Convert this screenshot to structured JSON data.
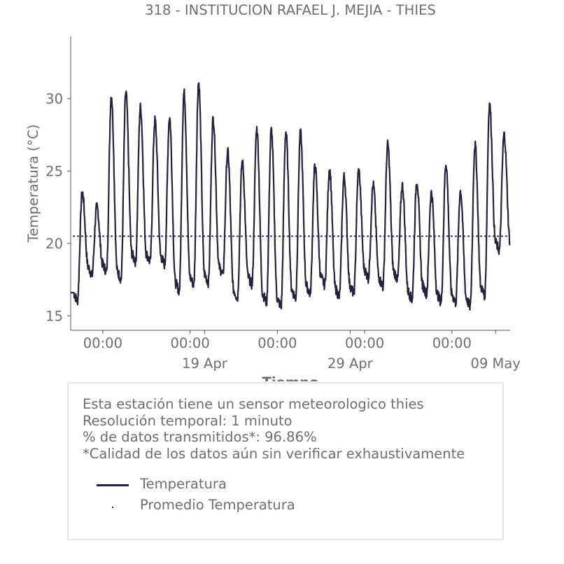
{
  "chart_data": {
    "type": "line",
    "title": "318 - INSTITUCION RAFAEL J. MEJIA - THIES",
    "xlabel": "Tiempo",
    "ylabel": "Temperatura (°C)",
    "ylim": [
      14,
      34.3
    ],
    "xlim": [
      "2025-04-09T19:00",
      "2025-05-10T00:00"
    ],
    "yticks": [
      15,
      20,
      25,
      30
    ],
    "xticks_time": [
      {
        "date": "2025-04-12T00:00",
        "label": "00:00"
      },
      {
        "date": "2025-04-18T00:00",
        "label": "00:00"
      },
      {
        "date": "2025-04-24T00:00",
        "label": "00:00"
      },
      {
        "date": "2025-04-30T00:00",
        "label": "00:00"
      },
      {
        "date": "2025-05-06T00:00",
        "label": "00:00"
      }
    ],
    "xticks_date": [
      {
        "date": "2025-04-19T00:00",
        "label": "19 Apr"
      },
      {
        "date": "2025-04-29T00:00",
        "label": "29 Apr"
      },
      {
        "date": "2025-05-09T00:00",
        "label": "09 May"
      }
    ],
    "grid": false,
    "series": [
      {
        "name": "Temperatura",
        "color": "#22223f",
        "style": "solid",
        "daily": [
          {
            "date": "2025-04-10",
            "min": 16.0,
            "max": 23.5
          },
          {
            "date": "2025-04-11",
            "min": 17.8,
            "max": 22.5
          },
          {
            "date": "2025-04-12",
            "min": 18.0,
            "max": 30.2
          },
          {
            "date": "2025-04-13",
            "min": 17.5,
            "max": 30.4
          },
          {
            "date": "2025-04-14",
            "min": 18.7,
            "max": 29.4
          },
          {
            "date": "2025-04-15",
            "min": 18.7,
            "max": 28.5
          },
          {
            "date": "2025-04-16",
            "min": 18.5,
            "max": 28.7
          },
          {
            "date": "2025-04-17",
            "min": 16.7,
            "max": 30.4
          },
          {
            "date": "2025-04-18",
            "min": 17.1,
            "max": 31.1
          },
          {
            "date": "2025-04-19",
            "min": 17.3,
            "max": 28.6
          },
          {
            "date": "2025-04-20",
            "min": 17.8,
            "max": 26.3
          },
          {
            "date": "2025-04-21",
            "min": 16.2,
            "max": 25.6
          },
          {
            "date": "2025-04-22",
            "min": 17.1,
            "max": 27.9
          },
          {
            "date": "2025-04-23",
            "min": 15.9,
            "max": 27.8
          },
          {
            "date": "2025-04-24",
            "min": 15.6,
            "max": 27.7
          },
          {
            "date": "2025-04-25",
            "min": 16.2,
            "max": 27.6
          },
          {
            "date": "2025-04-26",
            "min": 16.5,
            "max": 25.3
          },
          {
            "date": "2025-04-27",
            "min": 17.1,
            "max": 25.1
          },
          {
            "date": "2025-04-28",
            "min": 16.3,
            "max": 24.6
          },
          {
            "date": "2025-04-29",
            "min": 16.5,
            "max": 25.0
          },
          {
            "date": "2025-04-30",
            "min": 17.6,
            "max": 24.0
          },
          {
            "date": "2025-05-01",
            "min": 17.0,
            "max": 26.8
          },
          {
            "date": "2025-05-02",
            "min": 17.5,
            "max": 24.0
          },
          {
            "date": "2025-05-03",
            "min": 16.1,
            "max": 24.3
          },
          {
            "date": "2025-05-04",
            "min": 16.5,
            "max": 23.5
          },
          {
            "date": "2025-05-05",
            "min": 15.9,
            "max": 25.5
          },
          {
            "date": "2025-05-06",
            "min": 15.9,
            "max": 23.6
          },
          {
            "date": "2025-05-07",
            "min": 15.6,
            "max": 26.8
          },
          {
            "date": "2025-05-08",
            "min": 16.4,
            "max": 29.6
          },
          {
            "date": "2025-05-09",
            "min": 19.5,
            "max": 27.5
          }
        ]
      },
      {
        "name": "Promedio Temperatura",
        "color": "#22223f",
        "style": "dotted",
        "value": 20.5
      }
    ]
  },
  "info": {
    "line1": "Esta estación tiene un sensor meteorologico thies",
    "line2": "Resolución temporal: 1 minuto",
    "line3": "% de datos transmitidos*: 96.86%",
    "line4": "*Calidad de los datos aún sin verificar exhaustivamente"
  },
  "legend": {
    "item1": "Temperatura",
    "item2": "Promedio Temperatura"
  }
}
